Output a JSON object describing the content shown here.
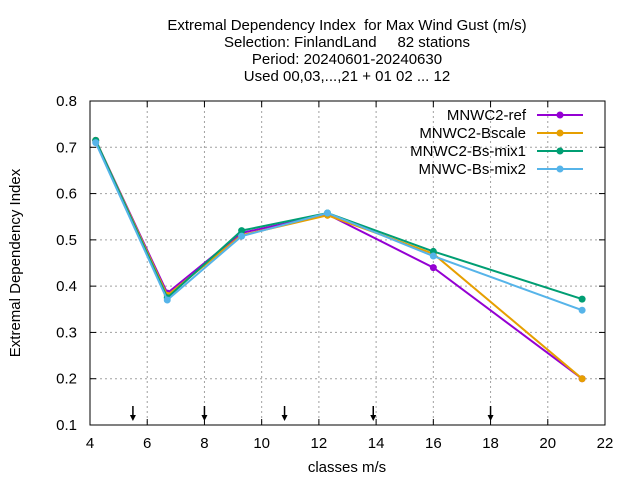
{
  "chart_data": {
    "type": "line",
    "title_lines": [
      "Extremal Dependency Index  for Max Wind Gust (m/s)",
      "Selection: FinlandLand     82 stations",
      "Period: 20240601-20240630",
      "Used 00,03,...,21 + 01 02 ... 12"
    ],
    "xlabel": "classes m/s",
    "ylabel": "Extremal Dependency Index",
    "xlim": [
      4,
      22
    ],
    "ylim": [
      0.1,
      0.8
    ],
    "xticks": [
      4,
      6,
      8,
      10,
      12,
      14,
      16,
      18,
      20,
      22
    ],
    "yticks": [
      0.1,
      0.2,
      0.3,
      0.4,
      0.5,
      0.6,
      0.7,
      0.8
    ],
    "grid": true,
    "legend_position": "top-right",
    "threshold_arrows": [
      5.5,
      8.0,
      10.8,
      13.9,
      18.0
    ],
    "x": [
      4.2,
      6.7,
      9.3,
      12.3,
      16.0,
      21.2
    ],
    "series": [
      {
        "name": "MNWC2-ref",
        "color": "#9400d3",
        "values": [
          0.715,
          0.385,
          0.515,
          0.555,
          0.44,
          0.2
        ]
      },
      {
        "name": "MNWC2-Bscale",
        "color": "#e69f00",
        "values": [
          0.715,
          0.38,
          0.51,
          0.553,
          0.47,
          0.2
        ]
      },
      {
        "name": "MNWC2-Bs-mix1",
        "color": "#009e73",
        "values": [
          0.715,
          0.375,
          0.52,
          0.558,
          0.475,
          0.372
        ]
      },
      {
        "name": "MNWC-Bs-mix2",
        "color": "#56b4e9",
        "values": [
          0.71,
          0.37,
          0.508,
          0.558,
          0.465,
          0.348
        ]
      }
    ]
  }
}
